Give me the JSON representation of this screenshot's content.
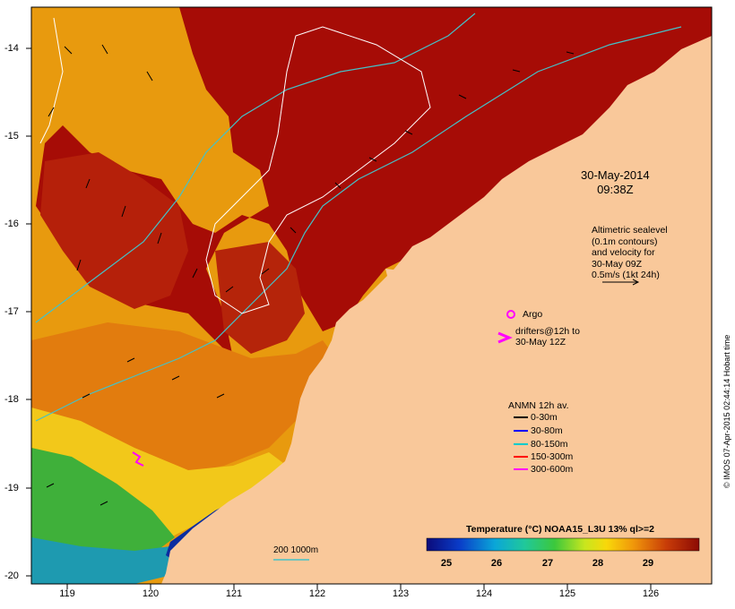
{
  "map": {
    "date": "30-May-2014",
    "time": "09:38Z",
    "altimetry_lines": [
      "Altimetric sealevel",
      "(0.1m contours)",
      "and velocity for",
      "30-May 09Z",
      "0.5m/s (1kt 24h)"
    ],
    "argo_label": "Argo",
    "drifters_lines": [
      "drifters@12h to",
      "30-May 12Z"
    ],
    "anmn_title": "ANMN 12h av.",
    "anmn_items": [
      {
        "label": "0-30m",
        "color": "#000000"
      },
      {
        "label": "30-80m",
        "color": "#0000ff"
      },
      {
        "label": "80-150m",
        "color": "#00cccc"
      },
      {
        "label": "150-300m",
        "color": "#ff0000"
      },
      {
        "label": "300-600m",
        "color": "#ff00ff"
      }
    ],
    "colorbar_title": "Temperature (°C) NOAA15_L3U 13% ql>=2",
    "colorbar_ticks": [
      "25",
      "26",
      "27",
      "28",
      "29"
    ],
    "lon_ticks": [
      "119",
      "120",
      "121",
      "122",
      "123",
      "124",
      "125",
      "126"
    ],
    "lat_ticks": [
      "-14",
      "-15",
      "-16",
      "-17",
      "-18",
      "-19",
      "-20"
    ],
    "scale_label": "200  1000m",
    "credit": "© IMOS 07-Apr-2015 02:44:14 Hobart time",
    "colors": {
      "land": "#f9c89a",
      "sst_hot": "#9c0a05",
      "sst_warm": "#e8900c",
      "sst_cool": "#2ea83a",
      "altimetry_contour": "#44c2c8"
    }
  }
}
